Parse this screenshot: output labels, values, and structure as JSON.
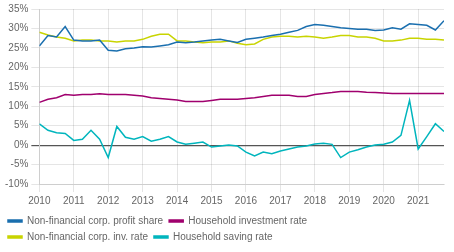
{
  "chart_data": {
    "type": "line",
    "x": [
      2010,
      2010.25,
      2010.5,
      2010.75,
      2011,
      2011.25,
      2011.5,
      2011.75,
      2012,
      2012.25,
      2012.5,
      2012.75,
      2013,
      2013.25,
      2013.5,
      2013.75,
      2014,
      2014.25,
      2014.5,
      2014.75,
      2015,
      2015.25,
      2015.5,
      2015.75,
      2016,
      2016.25,
      2016.5,
      2016.75,
      2017,
      2017.25,
      2017.5,
      2017.75,
      2018,
      2018.25,
      2018.5,
      2018.75,
      2019,
      2019.25,
      2019.5,
      2019.75,
      2020,
      2020.25,
      2020.5,
      2020.75,
      2021,
      2021.25,
      2021.5,
      2021.75
    ],
    "series": [
      {
        "name": "Non-financial corp. profit share",
        "color": "#1a6faf",
        "values": [
          0.255,
          0.282,
          0.278,
          0.305,
          0.27,
          0.268,
          0.268,
          0.27,
          0.244,
          0.242,
          0.248,
          0.25,
          0.253,
          0.252,
          0.255,
          0.258,
          0.265,
          0.263,
          0.265,
          0.268,
          0.27,
          0.272,
          0.268,
          0.264,
          0.272,
          0.275,
          0.278,
          0.282,
          0.285,
          0.29,
          0.295,
          0.305,
          0.31,
          0.308,
          0.305,
          0.302,
          0.3,
          0.298,
          0.298,
          0.295,
          0.296,
          0.302,
          0.298,
          0.312,
          0.31,
          0.308,
          0.296,
          0.32
        ]
      },
      {
        "name": "Household investment rate",
        "color": "#a0006e",
        "values": [
          0.11,
          0.118,
          0.122,
          0.13,
          0.128,
          0.13,
          0.13,
          0.132,
          0.13,
          0.13,
          0.13,
          0.128,
          0.126,
          0.122,
          0.12,
          0.118,
          0.116,
          0.112,
          0.112,
          0.112,
          0.115,
          0.118,
          0.118,
          0.118,
          0.12,
          0.122,
          0.125,
          0.128,
          0.128,
          0.128,
          0.125,
          0.125,
          0.13,
          0.133,
          0.135,
          0.138,
          0.138,
          0.138,
          0.136,
          0.135,
          0.134,
          0.133,
          0.133,
          0.133,
          0.133,
          0.133,
          0.133,
          0.133
        ]
      },
      {
        "name": "Non-financial corp. inv. rate",
        "color": "#c8d400",
        "values": [
          0.29,
          0.283,
          0.278,
          0.275,
          0.268,
          0.27,
          0.27,
          0.268,
          0.268,
          0.265,
          0.268,
          0.268,
          0.272,
          0.28,
          0.285,
          0.285,
          0.268,
          0.268,
          0.265,
          0.263,
          0.265,
          0.265,
          0.268,
          0.262,
          0.258,
          0.26,
          0.272,
          0.278,
          0.28,
          0.28,
          0.278,
          0.28,
          0.278,
          0.275,
          0.278,
          0.282,
          0.282,
          0.278,
          0.278,
          0.275,
          0.268,
          0.268,
          0.27,
          0.275,
          0.275,
          0.272,
          0.272,
          0.27
        ]
      },
      {
        "name": "Household saving rate",
        "color": "#00b5bd",
        "values": [
          0.055,
          0.038,
          0.032,
          0.03,
          0.012,
          0.015,
          0.038,
          0.015,
          -0.032,
          0.048,
          0.02,
          0.015,
          0.022,
          0.01,
          0.015,
          0.022,
          0.008,
          0.002,
          0.005,
          0.008,
          -0.005,
          -0.002,
          0.0,
          -0.002,
          -0.018,
          -0.028,
          -0.018,
          -0.022,
          -0.015,
          -0.01,
          -0.005,
          -0.002,
          0.003,
          0.005,
          0.002,
          -0.032,
          -0.018,
          -0.012,
          -0.005,
          0.0,
          0.002,
          0.008,
          0.025,
          0.115,
          -0.01,
          0.022,
          0.055,
          0.035
        ]
      }
    ],
    "xlim": [
      2010,
      2021.75
    ],
    "xticks": [
      2010,
      2011,
      2012,
      2013,
      2014,
      2015,
      2016,
      2017,
      2018,
      2019,
      2020,
      2021
    ],
    "ylim": [
      -0.1,
      0.35
    ],
    "yticks": [
      {
        "value": -0.1,
        "label": "-10%"
      },
      {
        "value": -0.05,
        "label": "-5%"
      },
      {
        "value": 0.0,
        "label": "0%"
      },
      {
        "value": 0.05,
        "label": "5%"
      },
      {
        "value": 0.1,
        "label": "10%"
      },
      {
        "value": 0.15,
        "label": "15%"
      },
      {
        "value": 0.2,
        "label": "20%"
      },
      {
        "value": 0.25,
        "label": "25%"
      },
      {
        "value": 0.3,
        "label": "30%"
      },
      {
        "value": 0.35,
        "label": "35%"
      }
    ],
    "grid": true,
    "legend": "lower left"
  }
}
